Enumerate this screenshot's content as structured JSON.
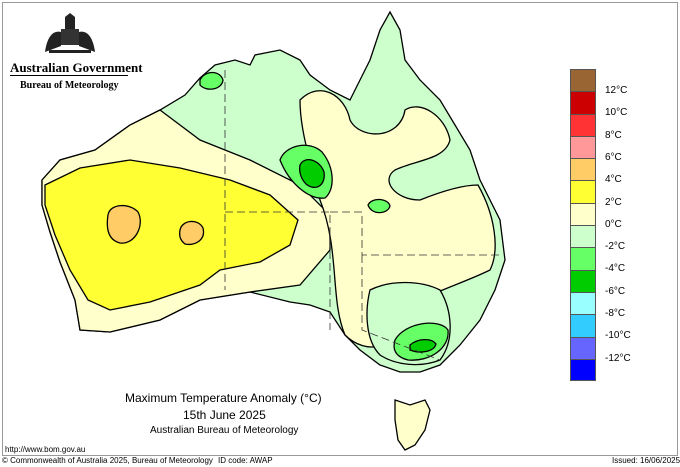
{
  "header": {
    "government": "Australian Government",
    "bureau": "Bureau of Meteorology",
    "logo": "commonwealth-coat-of-arms"
  },
  "map": {
    "title": "Maximum Temperature Anomaly (°C)",
    "date": "15th June 2025",
    "source": "Australian Bureau of Meteorology",
    "url": "http://www.bom.gov.au"
  },
  "legend": {
    "colors": [
      "#996633",
      "#cc0000",
      "#ff3333",
      "#ff9999",
      "#ffcc66",
      "#ffff33",
      "#ffffcc",
      "#ccffcc",
      "#66ff66",
      "#00cc00",
      "#99ffff",
      "#33ccff",
      "#6666ff",
      "#0000ff"
    ],
    "labels": [
      "12°C",
      "10°C",
      "8°C",
      "6°C",
      "4°C",
      "2°C",
      "0°C",
      "-2°C",
      "-4°C",
      "-6°C",
      "-8°C",
      "-10°C",
      "-12°C"
    ]
  },
  "footer": {
    "copyright": "© Commonwealth of Australia 2025, Bureau of Meteorology",
    "id_code": "ID code: AWAP",
    "issued": "Issued: 16/06/2025"
  }
}
